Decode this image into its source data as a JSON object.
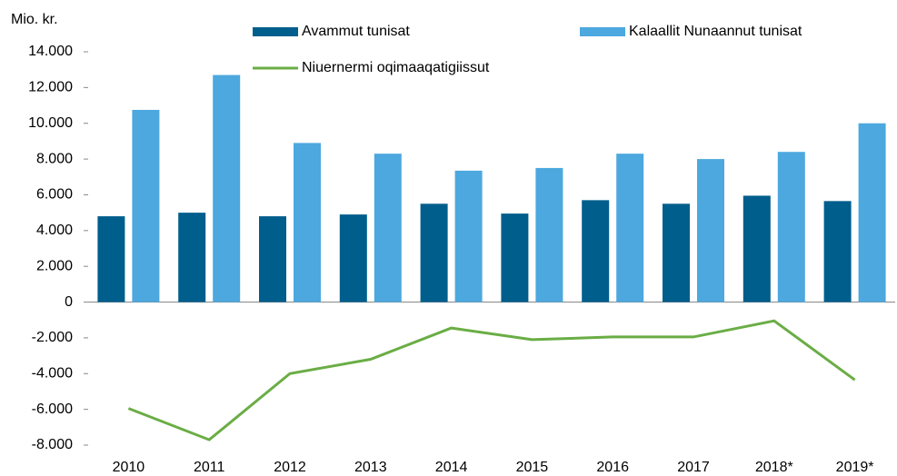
{
  "chart_data": {
    "type": "bar_line",
    "y_label": "Mio. kr.",
    "categories": [
      "2010",
      "2011",
      "2012",
      "2013",
      "2014",
      "2015",
      "2016",
      "2017",
      "2018*",
      "2019*"
    ],
    "series": [
      {
        "name": "Avammut tunisat",
        "type": "bar",
        "color": "#005e8c",
        "values": [
          4800,
          5000,
          4800,
          4900,
          5500,
          4950,
          5700,
          5500,
          5950,
          5650
        ]
      },
      {
        "name": "Kalaallit Nunaannut tunisat",
        "type": "bar",
        "color": "#4ca8de",
        "values": [
          10750,
          12700,
          8900,
          8300,
          7350,
          7500,
          8300,
          8000,
          8400,
          10000
        ]
      },
      {
        "name": "Niuernermi oqimaaqatigiissut",
        "type": "line",
        "color": "#6aad45",
        "values": [
          -5950,
          -7700,
          -4000,
          -3200,
          -1450,
          -2100,
          -1950,
          -1950,
          -1050,
          -4350
        ]
      }
    ],
    "ylim": [
      -8000,
      14000
    ],
    "yticks": [
      {
        "value": -8000,
        "label": "-8.000"
      },
      {
        "value": -6000,
        "label": "-6.000"
      },
      {
        "value": -4000,
        "label": "-4.000"
      },
      {
        "value": -2000,
        "label": "-2.000"
      },
      0,
      {
        "value": 2000,
        "label": "2.000"
      },
      {
        "value": 4000,
        "label": "4.000"
      },
      {
        "value": 6000,
        "label": "6.000"
      },
      {
        "value": 8000,
        "label": "8.000"
      },
      {
        "value": 10000,
        "label": "10.000"
      },
      {
        "value": 12000,
        "label": "12.000"
      },
      {
        "value": 14000,
        "label": "14.000"
      }
    ]
  }
}
